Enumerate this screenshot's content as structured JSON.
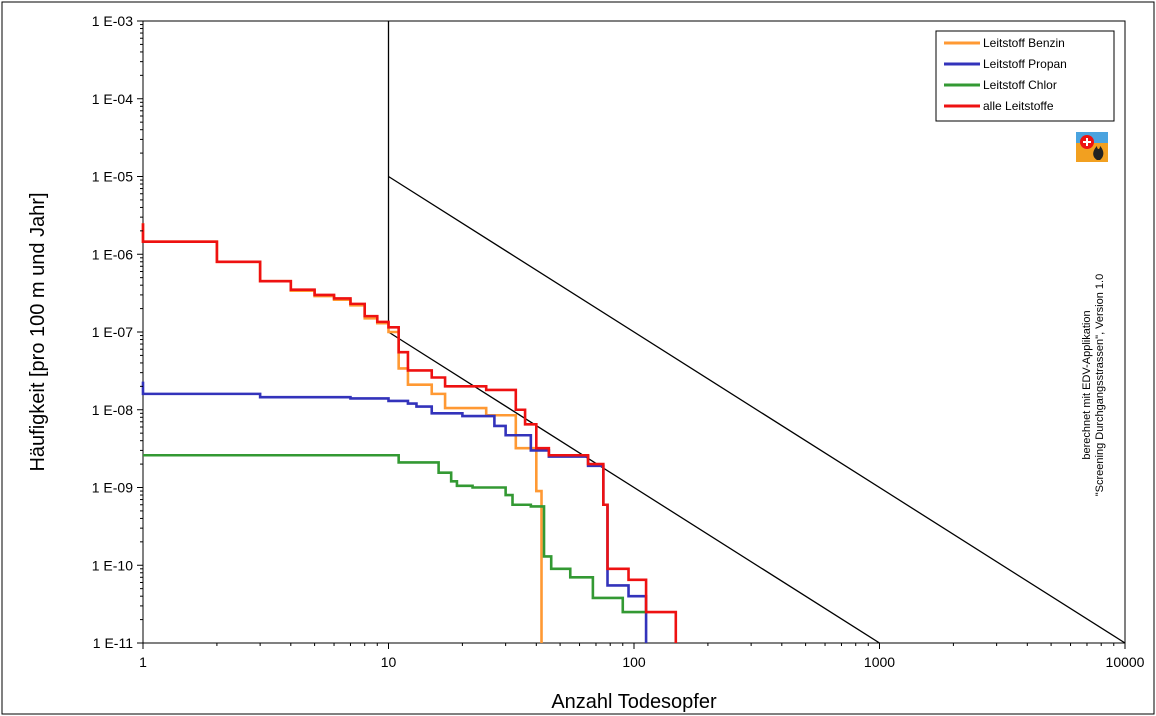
{
  "chart_data": {
    "type": "line",
    "xlabel": "Anzahl Todesopfer",
    "ylabel": "Häufigkeit [pro 100 m und Jahr]",
    "x_scale": "log",
    "y_scale": "log",
    "xlim": [
      1,
      10000
    ],
    "ylim": [
      1e-11,
      0.001
    ],
    "x_ticks": [
      {
        "value": 1,
        "label": "1"
      },
      {
        "value": 10,
        "label": "10"
      },
      {
        "value": 100,
        "label": "100"
      },
      {
        "value": 1000,
        "label": "1000"
      },
      {
        "value": 10000,
        "label": "10000"
      }
    ],
    "y_ticks": [
      {
        "value": 0.001,
        "label": "1 E-03"
      },
      {
        "value": 0.0001,
        "label": "1 E-04"
      },
      {
        "value": 1e-05,
        "label": "1 E-05"
      },
      {
        "value": 1e-06,
        "label": "1 E-06"
      },
      {
        "value": 1e-07,
        "label": "1 E-07"
      },
      {
        "value": 1e-08,
        "label": "1 E-08"
      },
      {
        "value": 1e-09,
        "label": "1 E-09"
      },
      {
        "value": 1e-10,
        "label": "1 E-10"
      },
      {
        "value": 1e-11,
        "label": "1 E-11"
      }
    ],
    "grid": false,
    "legend_position": "top-right",
    "series": [
      {
        "name": "Leitstoff Benzin",
        "color": "#ff9933",
        "points": [
          [
            1,
            2.5e-06
          ],
          [
            1,
            1.45e-06
          ],
          [
            2,
            1.45e-06
          ],
          [
            2,
            8e-07
          ],
          [
            3,
            8e-07
          ],
          [
            3,
            4.5e-07
          ],
          [
            4,
            4.5e-07
          ],
          [
            4,
            3.4e-07
          ],
          [
            5,
            3.4e-07
          ],
          [
            5,
            2.9e-07
          ],
          [
            6,
            2.9e-07
          ],
          [
            6,
            2.6e-07
          ],
          [
            7,
            2.6e-07
          ],
          [
            7,
            2.2e-07
          ],
          [
            8,
            2.2e-07
          ],
          [
            8,
            1.5e-07
          ],
          [
            9,
            1.5e-07
          ],
          [
            9,
            1.3e-07
          ],
          [
            10,
            1.3e-07
          ],
          [
            10,
            1e-07
          ],
          [
            11,
            1e-07
          ],
          [
            11,
            3.4e-08
          ],
          [
            12,
            3.4e-08
          ],
          [
            12,
            2.1e-08
          ],
          [
            15,
            2.1e-08
          ],
          [
            15,
            1.6e-08
          ],
          [
            17,
            1.6e-08
          ],
          [
            17,
            1.05e-08
          ],
          [
            25,
            1.05e-08
          ],
          [
            25,
            8.5e-09
          ],
          [
            33,
            8.5e-09
          ],
          [
            33,
            3.2e-09
          ],
          [
            40,
            3.2e-09
          ],
          [
            40,
            9e-10
          ],
          [
            42,
            9e-10
          ],
          [
            42,
            1e-11
          ]
        ]
      },
      {
        "name": "Leitstoff Propan",
        "color": "#3333bb",
        "points": [
          [
            1,
            2.3e-08
          ],
          [
            1,
            1.6e-08
          ],
          [
            3,
            1.6e-08
          ],
          [
            3,
            1.45e-08
          ],
          [
            7,
            1.45e-08
          ],
          [
            7,
            1.4e-08
          ],
          [
            10,
            1.4e-08
          ],
          [
            10,
            1.3e-08
          ],
          [
            12,
            1.3e-08
          ],
          [
            12,
            1.2e-08
          ],
          [
            13,
            1.2e-08
          ],
          [
            13,
            1.1e-08
          ],
          [
            15,
            1.1e-08
          ],
          [
            15,
            9e-09
          ],
          [
            20,
            9e-09
          ],
          [
            20,
            8.3e-09
          ],
          [
            27,
            8.3e-09
          ],
          [
            27,
            6.2e-09
          ],
          [
            30,
            6.2e-09
          ],
          [
            30,
            4.7e-09
          ],
          [
            38,
            4.7e-09
          ],
          [
            38,
            3e-09
          ],
          [
            45,
            3e-09
          ],
          [
            45,
            2.5e-09
          ],
          [
            65,
            2.5e-09
          ],
          [
            65,
            1.9e-09
          ],
          [
            75,
            1.9e-09
          ],
          [
            75,
            6e-10
          ],
          [
            78,
            6e-10
          ],
          [
            78,
            5.5e-11
          ],
          [
            95,
            5.5e-11
          ],
          [
            95,
            4e-11
          ],
          [
            112,
            4e-11
          ],
          [
            112,
            1e-11
          ]
        ]
      },
      {
        "name": "Leitstoff Chlor",
        "color": "#339933",
        "points": [
          [
            1,
            2.6e-09
          ],
          [
            11,
            2.6e-09
          ],
          [
            11,
            2.1e-09
          ],
          [
            16,
            2.1e-09
          ],
          [
            16,
            1.55e-09
          ],
          [
            18,
            1.55e-09
          ],
          [
            18,
            1.2e-09
          ],
          [
            19,
            1.2e-09
          ],
          [
            19,
            1.05e-09
          ],
          [
            22,
            1.05e-09
          ],
          [
            22,
            1e-09
          ],
          [
            30,
            1e-09
          ],
          [
            30,
            8e-10
          ],
          [
            32,
            8e-10
          ],
          [
            32,
            6e-10
          ],
          [
            38,
            6e-10
          ],
          [
            38,
            5.7e-10
          ],
          [
            43,
            5.7e-10
          ],
          [
            43,
            1.3e-10
          ],
          [
            46,
            1.3e-10
          ],
          [
            46,
            9e-11
          ],
          [
            55,
            9e-11
          ],
          [
            55,
            7e-11
          ],
          [
            68,
            7e-11
          ],
          [
            68,
            3.8e-11
          ],
          [
            90,
            3.8e-11
          ],
          [
            90,
            2.5e-11
          ],
          [
            112,
            2.5e-11
          ]
        ]
      },
      {
        "name": "alle Leitstoffe",
        "color": "#ee1111",
        "points": [
          [
            1,
            2.5e-06
          ],
          [
            1,
            1.45e-06
          ],
          [
            2,
            1.45e-06
          ],
          [
            2,
            8e-07
          ],
          [
            3,
            8e-07
          ],
          [
            3,
            4.5e-07
          ],
          [
            4,
            4.5e-07
          ],
          [
            4,
            3.5e-07
          ],
          [
            5,
            3.5e-07
          ],
          [
            5,
            3e-07
          ],
          [
            6,
            3e-07
          ],
          [
            6,
            2.7e-07
          ],
          [
            7,
            2.7e-07
          ],
          [
            7,
            2.3e-07
          ],
          [
            8,
            2.3e-07
          ],
          [
            8,
            1.6e-07
          ],
          [
            9,
            1.6e-07
          ],
          [
            9,
            1.35e-07
          ],
          [
            10,
            1.35e-07
          ],
          [
            10,
            1.15e-07
          ],
          [
            11,
            1.15e-07
          ],
          [
            11,
            5.5e-08
          ],
          [
            12,
            5.5e-08
          ],
          [
            12,
            3.2e-08
          ],
          [
            15,
            3.2e-08
          ],
          [
            15,
            2.6e-08
          ],
          [
            17,
            2.6e-08
          ],
          [
            17,
            2e-08
          ],
          [
            25,
            2e-08
          ],
          [
            25,
            1.8e-08
          ],
          [
            33,
            1.8e-08
          ],
          [
            33,
            1e-08
          ],
          [
            36,
            1e-08
          ],
          [
            36,
            6.5e-09
          ],
          [
            40,
            6.5e-09
          ],
          [
            40,
            3.2e-09
          ],
          [
            45,
            3.2e-09
          ],
          [
            45,
            2.6e-09
          ],
          [
            65,
            2.6e-09
          ],
          [
            65,
            2e-09
          ],
          [
            75,
            2e-09
          ],
          [
            75,
            6e-10
          ],
          [
            78,
            6e-10
          ],
          [
            78,
            9e-11
          ],
          [
            95,
            9e-11
          ],
          [
            95,
            6.5e-11
          ],
          [
            112,
            6.5e-11
          ],
          [
            112,
            2.5e-11
          ],
          [
            148,
            2.5e-11
          ],
          [
            148,
            1e-11
          ]
        ]
      }
    ],
    "reference_lines": [
      {
        "points": [
          [
            10,
            0.001
          ],
          [
            10,
            1e-07
          ]
        ]
      },
      {
        "points": [
          [
            10,
            1e-05
          ],
          [
            10000,
            1e-11
          ]
        ]
      },
      {
        "points": [
          [
            10,
            1e-07
          ],
          [
            1000,
            1e-11
          ]
        ]
      }
    ],
    "annotation": {
      "lines": [
        "berechnet mit EDV-Applikation",
        "\"Screening Durchgangsstrassen\", Version 1.0"
      ]
    },
    "logo_icon": "swiss-flame-logo-icon"
  }
}
